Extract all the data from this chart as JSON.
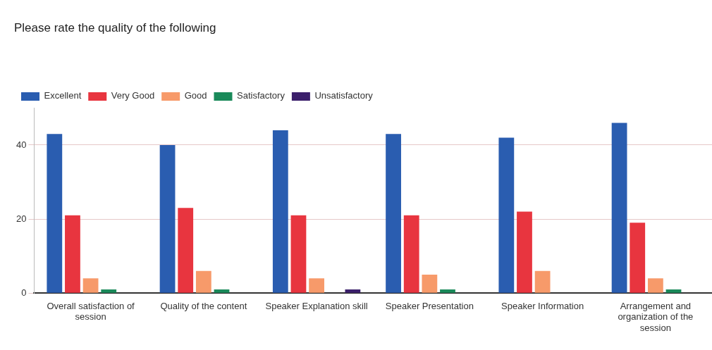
{
  "chart_data": {
    "type": "bar",
    "title": "Please rate the quality of the following",
    "categories": [
      "Overall satisfaction of session",
      "Quality of the content",
      "Speaker Explanation skill",
      "Speaker Presentation",
      "Speaker Information",
      "Arrangement and organization of the session"
    ],
    "series": [
      {
        "name": "Excellent",
        "color": "#2a5db0",
        "values": [
          43,
          40,
          44,
          43,
          42,
          46
        ]
      },
      {
        "name": "Very Good",
        "color": "#e8353f",
        "values": [
          21,
          23,
          21,
          21,
          22,
          19
        ]
      },
      {
        "name": "Good",
        "color": "#f79a6a",
        "values": [
          4,
          6,
          4,
          5,
          6,
          4
        ]
      },
      {
        "name": "Satisfactory",
        "color": "#1a8a5a",
        "values": [
          1,
          1,
          0,
          1,
          0,
          1
        ]
      },
      {
        "name": "Unsatisfactory",
        "color": "#3b1f6b",
        "values": [
          0,
          0,
          1,
          0,
          0,
          0
        ]
      }
    ],
    "ylim": [
      0,
      50
    ],
    "yticks": [
      0,
      20,
      40
    ],
    "grid": "y",
    "legend": "top left"
  }
}
